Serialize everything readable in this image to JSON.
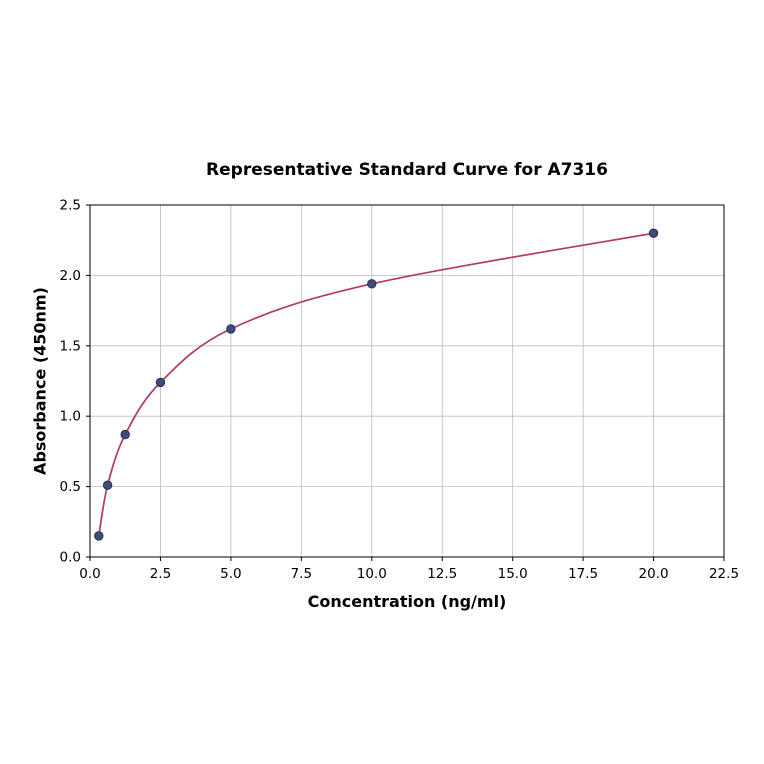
{
  "chart_data": {
    "type": "scatter",
    "title": "Representative Standard Curve for A7316",
    "xlabel": "Concentration (ng/ml)",
    "ylabel": "Absorbance (450nm)",
    "x": [
      0.3125,
      0.625,
      1.25,
      2.5,
      5.0,
      10.0,
      20.0
    ],
    "y": [
      0.15,
      0.51,
      0.87,
      1.24,
      1.62,
      1.94,
      2.3
    ],
    "xlim": [
      0,
      22.5
    ],
    "ylim": [
      0,
      2.5
    ],
    "xticks": [
      0,
      2.5,
      5,
      7.5,
      10,
      12.5,
      15,
      17.5,
      20,
      22.5
    ],
    "xtick_labels": [
      "0.0",
      "2.5",
      "5.0",
      "7.5",
      "10.0",
      "12.5",
      "15.0",
      "17.5",
      "20.0",
      "22.5"
    ],
    "yticks": [
      0,
      0.5,
      1.0,
      1.5,
      2.0,
      2.5
    ],
    "ytick_labels": [
      "0.0",
      "0.5",
      "1.0",
      "1.5",
      "2.0",
      "2.5"
    ],
    "grid": true,
    "legend": "none",
    "line_color": "#b23a66",
    "marker_color": "#3f4e79",
    "marker_edge_color": "#232f55",
    "grid_color": "#bcbcbc",
    "axis_color": "#000000",
    "tick_font_size": 13.5
  }
}
